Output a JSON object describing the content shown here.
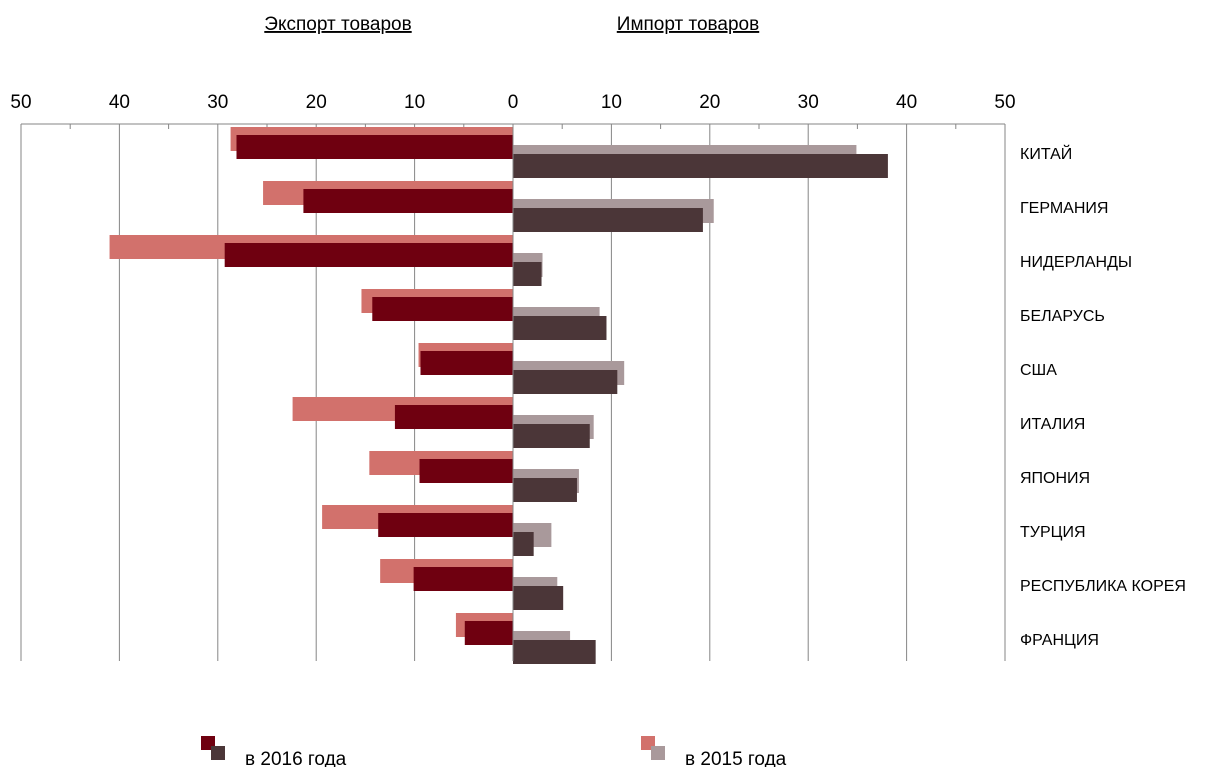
{
  "chart_data": {
    "type": "bar",
    "orientation": "horizontal-butterfly",
    "titles": {
      "export": "Экспорт товаров",
      "import": "Импорт товаров"
    },
    "axis": {
      "range": [
        0,
        50
      ],
      "tick_labels": [
        "50",
        "40",
        "30",
        "20",
        "10",
        "0",
        "10",
        "20",
        "30",
        "40",
        "50"
      ],
      "tick_values": [
        -50,
        -40,
        -30,
        -20,
        -10,
        0,
        10,
        20,
        30,
        40,
        50
      ]
    },
    "categories": [
      "КИТАЙ",
      "ГЕРМАНИЯ",
      "НИДЕРЛАНДЫ",
      "БЕЛАРУСЬ",
      "США",
      "ИТАЛИЯ",
      "ЯПОНИЯ",
      "ТУРЦИЯ",
      "РЕСПУБЛИКА КОРЕЯ",
      "ФРАНЦИЯ"
    ],
    "series": [
      {
        "name": "в 2015 года",
        "side": "export",
        "color": "#d2716c",
        "values": [
          28.7,
          25.4,
          41.0,
          15.4,
          9.6,
          22.4,
          14.6,
          19.4,
          13.5,
          5.8
        ]
      },
      {
        "name": "в 2016 года",
        "side": "export",
        "color": "#6f0010",
        "values": [
          28.1,
          21.3,
          29.3,
          14.3,
          9.4,
          12.0,
          9.5,
          13.7,
          10.1,
          4.9
        ]
      },
      {
        "name": "в 2015 года",
        "side": "import",
        "color": "#a9999b",
        "values": [
          34.9,
          20.4,
          3.0,
          8.8,
          11.3,
          8.2,
          6.7,
          3.9,
          4.5,
          5.8
        ]
      },
      {
        "name": "в 2016 года",
        "side": "import",
        "color": "#4b3638",
        "values": [
          38.1,
          19.3,
          2.9,
          9.5,
          10.6,
          7.8,
          6.5,
          2.1,
          5.1,
          8.4
        ]
      }
    ],
    "legend": {
      "position": "bottom",
      "items": [
        {
          "label": "в 2016 года",
          "colors": [
            "#6f0010",
            "#4b3638"
          ]
        },
        {
          "label": "в 2015 года",
          "colors": [
            "#d2716c",
            "#a9999b"
          ]
        }
      ]
    },
    "grid": true
  }
}
